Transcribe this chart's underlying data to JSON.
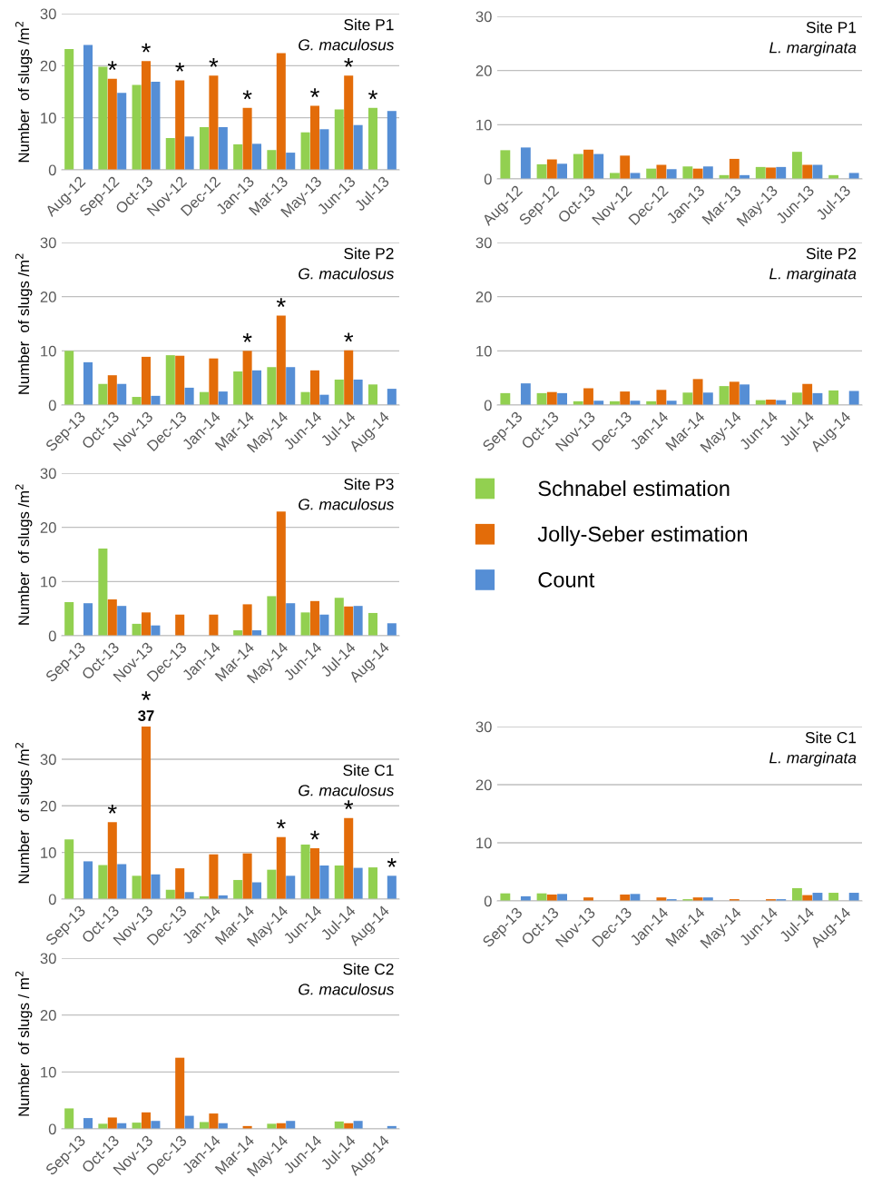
{
  "chart_data": [
    {
      "type": "bar",
      "title": "Site P1",
      "subtitle": "G. maculosus",
      "ylabel": "Number  of slugs /m$^{2}$",
      "categories": [
        "Aug-12",
        "Sep-12",
        "Oct-13",
        "Nov-12",
        "Dec-12",
        "Jan-13",
        "Mar-13",
        "May-13",
        "Jun-13",
        "Jul-13"
      ],
      "ylim": [
        0,
        30
      ],
      "yticks": [
        0,
        10,
        20,
        30
      ],
      "grid": "y",
      "series": [
        {
          "color": "#92d050",
          "values": [
            23.2,
            19.8,
            16.3,
            6.1,
            8.2,
            4.9,
            3.8,
            7.2,
            11.6,
            11.9
          ]
        },
        {
          "color": "#e36c09",
          "values": [
            null,
            17.5,
            20.9,
            17.2,
            18.1,
            11.9,
            22.4,
            12.3,
            18.1,
            null
          ]
        },
        {
          "color": "#558ed5",
          "values": [
            24,
            14.8,
            16.9,
            6.4,
            8.2,
            5.0,
            3.3,
            7.8,
            8.6,
            11.3
          ]
        }
      ],
      "annotations": [
        {
          "text": "*",
          "x": "Sep-12",
          "y": 17.5
        },
        {
          "text": "*",
          "x": "Oct-13",
          "y": 20.9
        },
        {
          "text": "*",
          "x": "Nov-12",
          "y": 17.2
        },
        {
          "text": "*",
          "x": "Dec-12",
          "y": 18.1
        },
        {
          "text": "*",
          "x": "Jan-13",
          "y": 11.9
        },
        {
          "text": "*",
          "x": "May-13",
          "y": 12.3
        },
        {
          "text": "*",
          "x": "Jun-13",
          "y": 18.1
        },
        {
          "text": "*",
          "x": "Jul-13",
          "y": 11.9
        }
      ]
    },
    {
      "type": "bar",
      "title": "Site P1",
      "subtitle": "L. marginata",
      "categories": [
        "Aug-12",
        "Sep-12",
        "Oct-13",
        "Nov-12",
        "Dec-12",
        "Jan-13",
        "Mar-13",
        "May-13",
        "Jun-13",
        "Jul-13"
      ],
      "ylim": [
        0,
        30
      ],
      "yticks": [
        0,
        10,
        20,
        30
      ],
      "grid": "y",
      "series": [
        {
          "color": "#92d050",
          "values": [
            5.3,
            2.7,
            4.6,
            1.1,
            1.9,
            2.3,
            0.7,
            2.2,
            5.0,
            0.7
          ]
        },
        {
          "color": "#e36c09",
          "values": [
            null,
            3.6,
            5.4,
            4.3,
            2.6,
            1.9,
            3.7,
            2.1,
            2.6,
            null
          ]
        },
        {
          "color": "#558ed5",
          "values": [
            5.8,
            2.8,
            4.6,
            1.1,
            1.8,
            2.3,
            0.7,
            2.2,
            2.6,
            1.1
          ]
        }
      ]
    },
    {
      "type": "bar",
      "title": "Site P2",
      "subtitle": "G. maculosus",
      "ylabel": "Number  of slugs /m$^{2}$",
      "categories": [
        "Sep-13",
        "Oct-13",
        "Nov-13",
        "Dec-13",
        "Jan-14",
        "Mar-14",
        "May-14",
        "Jun-14",
        "Jul-14",
        "Aug-14"
      ],
      "ylim": [
        0,
        30
      ],
      "yticks": [
        0,
        10,
        20,
        30
      ],
      "grid": "y",
      "series": [
        {
          "color": "#92d050",
          "values": [
            10.0,
            3.9,
            1.5,
            9.2,
            2.4,
            6.2,
            7.0,
            2.4,
            4.7,
            3.8
          ]
        },
        {
          "color": "#e36c09",
          "values": [
            null,
            5.5,
            8.9,
            9.1,
            8.6,
            10.0,
            16.5,
            6.4,
            10.1,
            null
          ]
        },
        {
          "color": "#558ed5",
          "values": [
            7.9,
            3.9,
            1.7,
            3.2,
            2.5,
            6.4,
            7.0,
            1.9,
            4.7,
            3.0
          ]
        }
      ],
      "annotations": [
        {
          "text": "*",
          "x": "Mar-14",
          "y": 10.0
        },
        {
          "text": "*",
          "x": "May-14",
          "y": 16.5
        },
        {
          "text": "*",
          "x": "Jul-14",
          "y": 10.1
        }
      ]
    },
    {
      "type": "bar",
      "title": "Site P2",
      "subtitle": "L. marginata",
      "categories": [
        "Sep-13",
        "Oct-13",
        "Nov-13",
        "Dec-13",
        "Jan-14",
        "Mar-14",
        "May-14",
        "Jun-14",
        "Jul-14",
        "Aug-14"
      ],
      "ylim": [
        0,
        30
      ],
      "yticks": [
        0,
        10,
        20,
        30
      ],
      "grid": "y",
      "series": [
        {
          "color": "#92d050",
          "values": [
            2.2,
            2.2,
            0.7,
            0.7,
            0.7,
            2.3,
            3.5,
            0.9,
            2.3,
            2.7
          ]
        },
        {
          "color": "#e36c09",
          "values": [
            null,
            2.4,
            3.1,
            2.5,
            2.8,
            4.8,
            4.3,
            1.0,
            3.9,
            null
          ]
        },
        {
          "color": "#558ed5",
          "values": [
            4.0,
            2.2,
            0.8,
            0.8,
            0.8,
            2.3,
            3.8,
            0.9,
            2.2,
            2.6
          ]
        }
      ]
    },
    {
      "type": "bar",
      "title": "Site P3",
      "subtitle": "G. maculosus",
      "ylabel": "Number  of slugs /m$^{2}$",
      "categories": [
        "Sep-13",
        "Oct-13",
        "Nov-13",
        "Dec-13",
        "Jan-14",
        "Mar-14",
        "May-14",
        "Jun-14",
        "Jul-14",
        "Aug-14"
      ],
      "ylim": [
        0,
        30
      ],
      "yticks": [
        0,
        10,
        20,
        30
      ],
      "grid": "y",
      "legend": "right",
      "series": [
        {
          "name": "Schnabel estimation",
          "color": "#92d050",
          "values": [
            6.2,
            16.1,
            2.2,
            null,
            null,
            1.0,
            7.3,
            4.3,
            7.0,
            4.2
          ]
        },
        {
          "name": "Jolly-Seber estimation",
          "color": "#e36c09",
          "values": [
            null,
            6.7,
            4.3,
            3.9,
            3.9,
            5.8,
            22.9,
            6.4,
            5.4,
            null
          ]
        },
        {
          "name": "Count",
          "color": "#558ed5",
          "values": [
            6.0,
            5.5,
            1.9,
            null,
            null,
            1.0,
            6.0,
            3.9,
            5.5,
            2.3
          ]
        }
      ]
    },
    {
      "type": "bar",
      "title": "Site C1",
      "subtitle": "G. maculosus",
      "ylabel": "Number  of slugs /m$^{2}$",
      "categories": [
        "Sep-13",
        "Oct-13",
        "Nov-13",
        "Dec-13",
        "Jan-14",
        "Mar-14",
        "May-14",
        "Jun-14",
        "Jul-14",
        "Aug-14"
      ],
      "ylim": [
        0,
        37
      ],
      "yticks": [
        0,
        10,
        20,
        30
      ],
      "grid": "y",
      "series": [
        {
          "color": "#92d050",
          "values": [
            12.8,
            7.3,
            5.0,
            2.0,
            0.6,
            4.1,
            6.3,
            11.7,
            7.2,
            6.8
          ]
        },
        {
          "color": "#e36c09",
          "values": [
            null,
            16.5,
            37,
            6.6,
            9.6,
            9.8,
            13.3,
            10.9,
            17.4,
            null
          ],
          "value_labels": [
            null,
            null,
            "37",
            null,
            null,
            null,
            null,
            null,
            null,
            null
          ]
        },
        {
          "color": "#558ed5",
          "values": [
            8.1,
            7.5,
            5.3,
            1.5,
            0.8,
            3.6,
            5.0,
            7.2,
            6.7,
            5.0
          ]
        }
      ],
      "annotations": [
        {
          "text": "*",
          "x": "Oct-13",
          "y": 16.5
        },
        {
          "text": "*",
          "x": "Nov-13",
          "y": 37
        },
        {
          "text": "*",
          "x": "May-14",
          "y": 13.3
        },
        {
          "text": "*",
          "x": "Jun-14",
          "y": 10.9
        },
        {
          "text": "*",
          "x": "Jul-14",
          "y": 17.4
        },
        {
          "text": "*",
          "x": "Aug-14",
          "y": 5.0
        }
      ]
    },
    {
      "type": "bar",
      "title": "Site C1",
      "subtitle": "L. marginata",
      "categories": [
        "Sep-13",
        "Oct-13",
        "Nov-13",
        "Dec-13",
        "Jan-14",
        "Mar-14",
        "May-14",
        "Jun-14",
        "Jul-14",
        "Aug-14"
      ],
      "ylim": [
        0,
        30
      ],
      "yticks": [
        0,
        10,
        20,
        30
      ],
      "grid": "y",
      "series": [
        {
          "color": "#92d050",
          "values": [
            1.3,
            1.3,
            null,
            null,
            null,
            0.3,
            null,
            null,
            2.2,
            1.4
          ]
        },
        {
          "color": "#e36c09",
          "values": [
            null,
            1.1,
            0.6,
            1.1,
            0.6,
            0.6,
            0.3,
            0.3,
            1.0,
            null
          ]
        },
        {
          "color": "#558ed5",
          "values": [
            0.8,
            1.2,
            null,
            1.2,
            0.3,
            0.6,
            null,
            0.3,
            1.4,
            1.4
          ]
        }
      ]
    },
    {
      "type": "bar",
      "title": "Site C2",
      "subtitle": "G. maculosus",
      "ylabel": "Number  of slugs / m$^{2}$",
      "categories": [
        "Sep-13",
        "Oct-13",
        "Nov-13",
        "Dec-13",
        "Jan-14",
        "Mar-14",
        "May-14",
        "Jun-14",
        "Jul-14",
        "Aug-14"
      ],
      "ylim": [
        0,
        30
      ],
      "yticks": [
        0,
        10,
        20,
        30
      ],
      "grid": "y",
      "series": [
        {
          "color": "#92d050",
          "values": [
            3.6,
            0.9,
            1.1,
            null,
            1.2,
            null,
            0.9,
            null,
            1.3,
            null
          ]
        },
        {
          "color": "#e36c09",
          "values": [
            null,
            2.0,
            2.9,
            12.5,
            2.7,
            0.5,
            1.0,
            null,
            1.0,
            null
          ]
        },
        {
          "color": "#558ed5",
          "values": [
            1.9,
            1.0,
            1.4,
            2.3,
            1.0,
            null,
            1.4,
            null,
            1.4,
            0.5
          ]
        }
      ]
    }
  ]
}
